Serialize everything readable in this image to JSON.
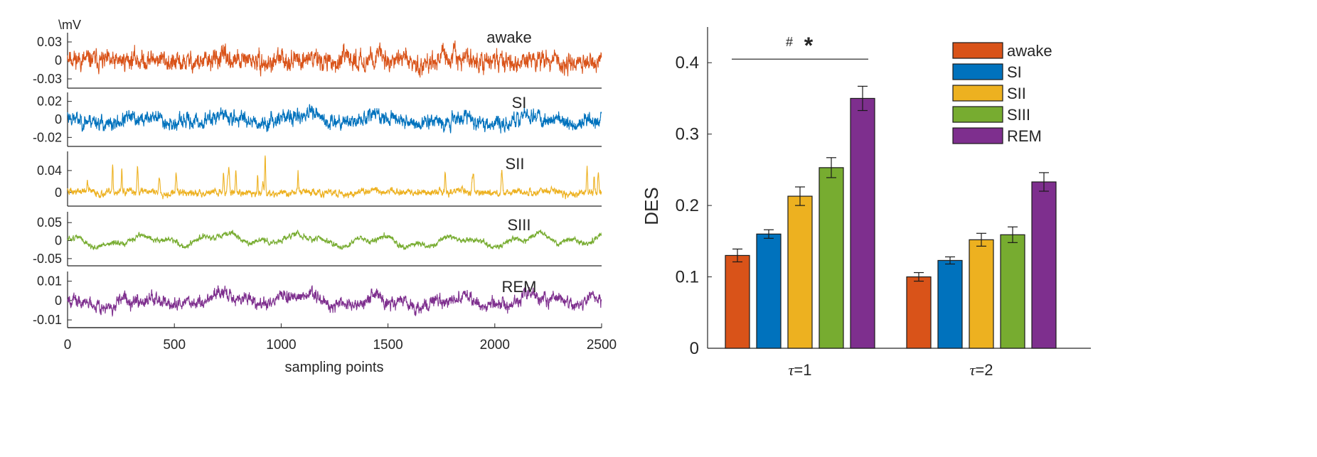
{
  "chart_data": [
    {
      "type": "line",
      "layout": "stacked-traces",
      "y_unit_label": "\\mV",
      "xlabel": "sampling points",
      "xlim": [
        0,
        2500
      ],
      "xticks": [
        "0",
        "500",
        "1000",
        "1500",
        "2000",
        "2500"
      ],
      "series": [
        {
          "name": "awake",
          "color": "#D95319",
          "ylim": [
            -0.045,
            0.045
          ],
          "yticks": [
            0.03,
            0,
            -0.03
          ],
          "ytick_labels": [
            "0.03",
            "0",
            "-0.03"
          ],
          "style": {
            "noise": 0.0085,
            "slow": 0.006,
            "spikes": 0,
            "seed": 11
          }
        },
        {
          "name": "SI",
          "color": "#0072BD",
          "ylim": [
            -0.03,
            0.03
          ],
          "yticks": [
            0.02,
            0,
            -0.02
          ],
          "ytick_labels": [
            "0.02",
            "0",
            "-0.02"
          ],
          "style": {
            "noise": 0.0045,
            "slow": 0.006,
            "spikes": 0,
            "seed": 23
          }
        },
        {
          "name": "SII",
          "color": "#EDB120",
          "ylim": [
            -0.025,
            0.075
          ],
          "yticks": [
            0.04,
            0
          ],
          "ytick_labels": [
            "0.04",
            "0"
          ],
          "style": {
            "noise": 0.0035,
            "slow": 0.003,
            "spikes": 1,
            "seed": 37
          }
        },
        {
          "name": "SIII",
          "color": "#77AC30",
          "ylim": [
            -0.07,
            0.08
          ],
          "yticks": [
            0.05,
            0,
            -0.05
          ],
          "ytick_labels": [
            "0.05",
            "0",
            "-0.05"
          ],
          "style": {
            "noise": 0.004,
            "slow": 0.02,
            "spikes": 0,
            "seed": 51
          }
        },
        {
          "name": "REM",
          "color": "#7E2F8E",
          "ylim": [
            -0.014,
            0.015
          ],
          "yticks": [
            0.01,
            0,
            -0.01
          ],
          "ytick_labels": [
            "0.01",
            "0",
            "-0.01"
          ],
          "style": {
            "noise": 0.0018,
            "slow": 0.004,
            "spikes": 0,
            "seed": 67
          }
        }
      ]
    },
    {
      "type": "bar",
      "ylabel": "DES",
      "ylim": [
        0,
        0.45
      ],
      "yticks": [
        0,
        0.1,
        0.2,
        0.3,
        0.4
      ],
      "ytick_labels": [
        "0",
        "0.1",
        "0.2",
        "0.3",
        "0.4"
      ],
      "categories": [
        "τ=1",
        "τ=2"
      ],
      "category_symbol": "τ",
      "category_values": [
        "=1",
        "=2"
      ],
      "legend_position": "top-right",
      "series": [
        {
          "name": "awake",
          "color": "#D95319",
          "values": [
            0.13,
            0.1
          ],
          "errors": [
            0.009,
            0.006
          ]
        },
        {
          "name": "SI",
          "color": "#0072BD",
          "values": [
            0.16,
            0.123
          ],
          "errors": [
            0.006,
            0.005
          ]
        },
        {
          "name": "SII",
          "color": "#EDB120",
          "values": [
            0.213,
            0.152
          ],
          "errors": [
            0.013,
            0.009
          ]
        },
        {
          "name": "SIII",
          "color": "#77AC30",
          "values": [
            0.253,
            0.159
          ],
          "errors": [
            0.014,
            0.011
          ]
        },
        {
          "name": "REM",
          "color": "#7E2F8E",
          "values": [
            0.35,
            0.233
          ],
          "errors": [
            0.017,
            0.013
          ]
        }
      ],
      "significance": {
        "group": "τ=1",
        "from_series": "awake",
        "to_series": "REM",
        "level": 0.405,
        "labels": [
          "#",
          "*"
        ]
      }
    }
  ]
}
